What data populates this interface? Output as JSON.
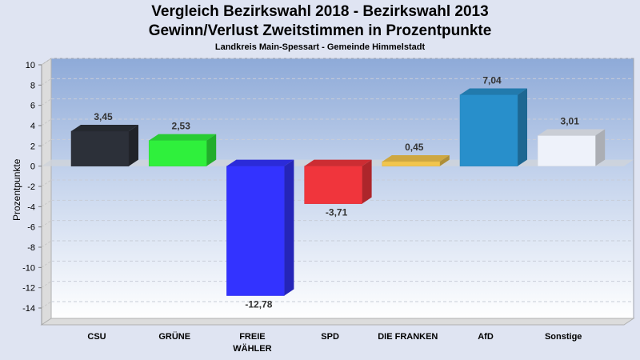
{
  "titles": {
    "title": "Vergleich Bezirkswahl 2018 - Bezirkswahl 2013",
    "subtitle": "Gewinn/Verlust Zweitstimmen in Prozentpunkte",
    "caption": "Landkreis Main-Spessart - Gemeinde Himmelstadt"
  },
  "chart_data": {
    "type": "bar",
    "title": "Vergleich Bezirkswahl 2018 - Bezirkswahl 2013",
    "subtitle": "Gewinn/Verlust Zweitstimmen in Prozentpunkte",
    "caption": "Landkreis Main-Spessart - Gemeinde Himmelstadt",
    "xlabel": "",
    "ylabel": "Prozentpunkte",
    "ylim": [
      -15,
      10
    ],
    "yticks": [
      10,
      8,
      6,
      4,
      2,
      0,
      -2,
      -4,
      -6,
      -8,
      -10,
      -12,
      -14
    ],
    "grid": true,
    "categories": [
      "CSU",
      "GRÜNE",
      "FREIE WÄHLER",
      "SPD",
      "DIE FRANKEN",
      "AfD",
      "Sonstige"
    ],
    "category_lines": [
      [
        "CSU"
      ],
      [
        "GRÜNE"
      ],
      [
        "FREIE",
        "WÄHLER"
      ],
      [
        "SPD"
      ],
      [
        "DIE FRANKEN"
      ],
      [
        "AfD"
      ],
      [
        "Sonstige"
      ]
    ],
    "values": [
      3.45,
      2.53,
      -12.78,
      -3.71,
      0.45,
      7.04,
      3.01
    ],
    "value_labels": [
      "3,45",
      "2,53",
      "-12,78",
      "-3,71",
      "0,45",
      "7,04",
      "3,01"
    ],
    "colors": [
      "#2c3039",
      "#2ff03c",
      "#3333ff",
      "#f0353c",
      "#f2c54c",
      "#288fcb",
      "#eef2fa"
    ]
  }
}
